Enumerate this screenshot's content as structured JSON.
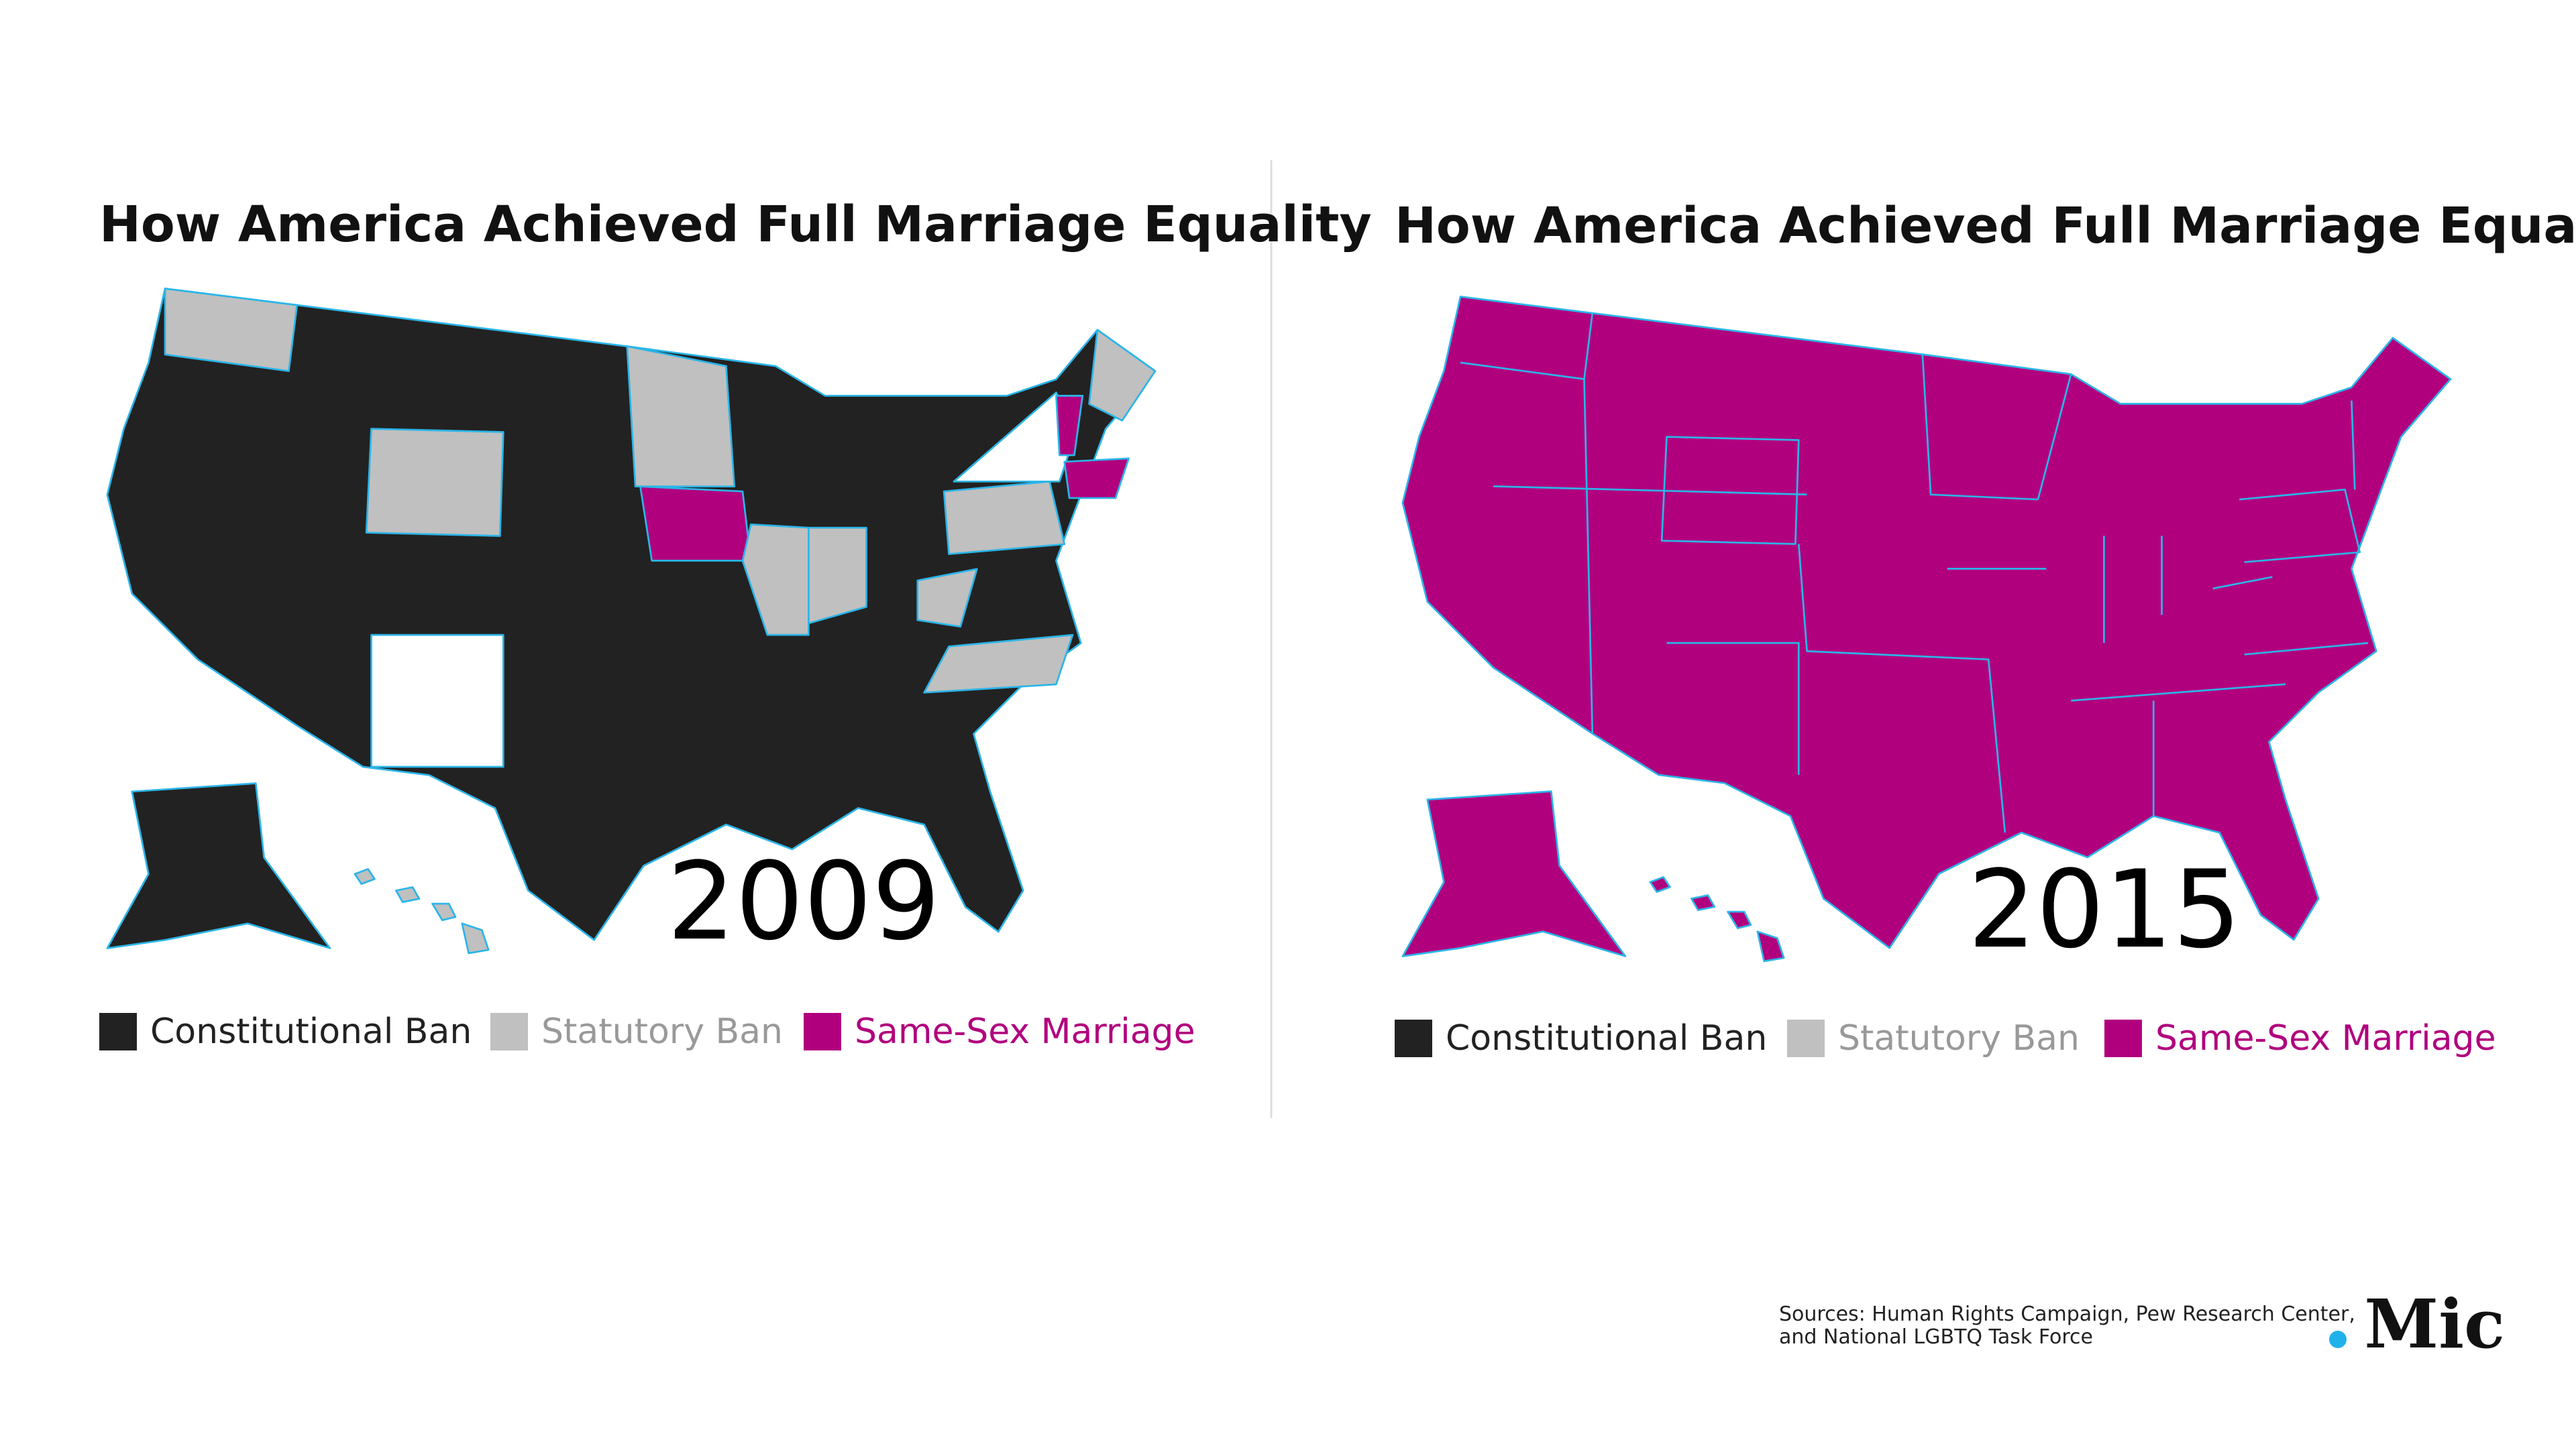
{
  "panels": [
    {
      "title": "How America Achieved Full Marriage Equality",
      "year": "2009",
      "legend": [
        {
          "label": "Constitutional Ban",
          "color": "#222222"
        },
        {
          "label": "Statutory Ban",
          "color": "#c0c0c0"
        },
        {
          "label": "Same-Sex Marriage",
          "color": "#b1007e"
        }
      ]
    },
    {
      "title": "How America Achieved Full Marriage Equality",
      "year": "2015",
      "legend": [
        {
          "label": "Constitutional Ban",
          "color": "#222222"
        },
        {
          "label": "Statutory Ban",
          "color": "#c0c0c0"
        },
        {
          "label": "Same-Sex Marriage",
          "color": "#b1007e"
        }
      ]
    }
  ],
  "sources": [
    "Sources: Human Rights Campaign, Pew Research Center,",
    "and National LGBTQ Task Force"
  ],
  "logo": ".Mic"
}
